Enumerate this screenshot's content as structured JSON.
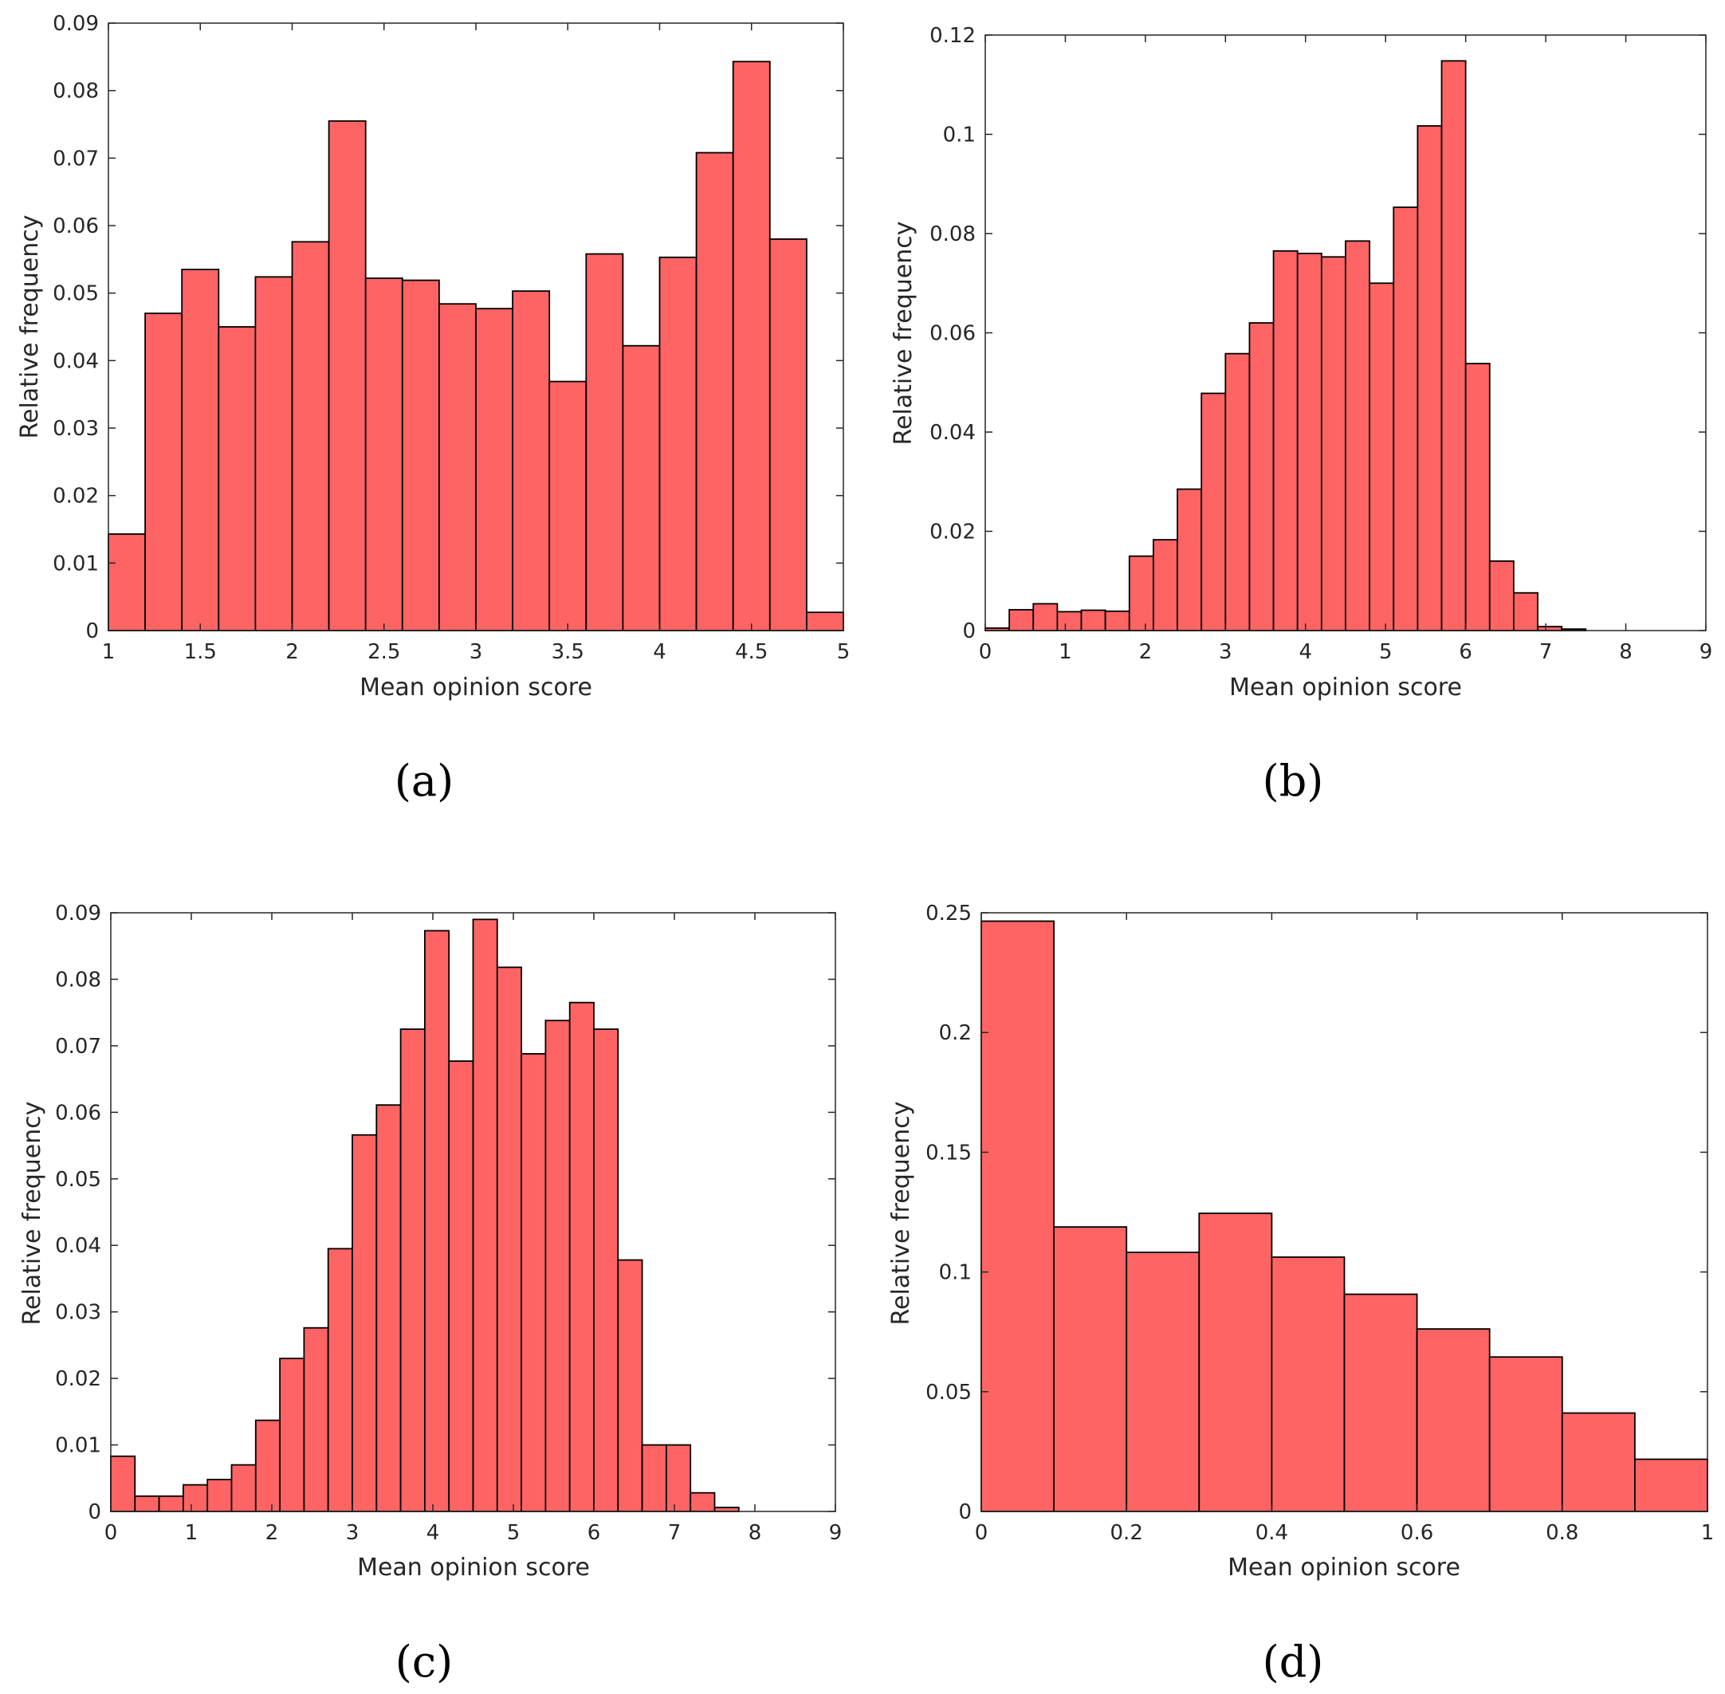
{
  "colors": {
    "bar_fill": "#ff6464",
    "bar_edge": "#000000",
    "axis": "#262626"
  },
  "chart_data": [
    {
      "type": "bar",
      "panel_label": "(a)",
      "title": "",
      "xlabel": "Mean opinion score",
      "ylabel": "Relative frequency",
      "xlim": [
        1,
        5
      ],
      "ylim": [
        0,
        0.09
      ],
      "xticks": [
        1,
        1.5,
        2,
        2.5,
        3,
        3.5,
        4,
        4.5,
        5
      ],
      "xtick_labels": [
        "1",
        "1.5",
        "2",
        "2.5",
        "3",
        "3.5",
        "4",
        "4.5",
        "5"
      ],
      "yticks": [
        0,
        0.01,
        0.02,
        0.03,
        0.04,
        0.05,
        0.06,
        0.07,
        0.08,
        0.09
      ],
      "ytick_labels": [
        "0",
        "0.01",
        "0.02",
        "0.03",
        "0.04",
        "0.05",
        "0.06",
        "0.07",
        "0.08",
        "0.09"
      ],
      "bin_edges": [
        1,
        1.2,
        1.4,
        1.6,
        1.8,
        2.0,
        2.2,
        2.4,
        2.6,
        2.8,
        3.0,
        3.2,
        3.4,
        3.6,
        3.8,
        4.0,
        4.2,
        4.4,
        4.6,
        4.8,
        5.0
      ],
      "values": [
        0.0143,
        0.047,
        0.0535,
        0.045,
        0.0524,
        0.0576,
        0.0755,
        0.0522,
        0.0519,
        0.0484,
        0.0477,
        0.0503,
        0.0369,
        0.0558,
        0.0422,
        0.0553,
        0.0708,
        0.0843,
        0.058,
        0.0027
      ]
    },
    {
      "type": "bar",
      "panel_label": "(b)",
      "title": "",
      "xlabel": "Mean opinion score",
      "ylabel": "Relative frequency",
      "xlim": [
        0,
        9
      ],
      "ylim": [
        0,
        0.12
      ],
      "xticks": [
        0,
        1,
        2,
        3,
        4,
        5,
        6,
        7,
        8,
        9
      ],
      "xtick_labels": [
        "0",
        "1",
        "2",
        "3",
        "4",
        "5",
        "6",
        "7",
        "8",
        "9"
      ],
      "yticks": [
        0,
        0.02,
        0.04,
        0.06,
        0.08,
        0.1,
        0.12
      ],
      "ytick_labels": [
        "0",
        "0.02",
        "0.04",
        "0.06",
        "0.08",
        "0.1",
        "0.12"
      ],
      "bin_edges": [
        0,
        0.3,
        0.6,
        0.9,
        1.2,
        1.5,
        1.8,
        2.1,
        2.4,
        2.7,
        3.0,
        3.3,
        3.6,
        3.9,
        4.2,
        4.5,
        4.8,
        5.1,
        5.4,
        5.7,
        6.0,
        6.3,
        6.6,
        6.9,
        7.2,
        7.5
      ],
      "values": [
        0.0005,
        0.0042,
        0.0054,
        0.0038,
        0.0041,
        0.0039,
        0.015,
        0.0183,
        0.0285,
        0.0478,
        0.0558,
        0.062,
        0.0765,
        0.076,
        0.0753,
        0.0785,
        0.07,
        0.0853,
        0.1017,
        0.1148,
        0.0538,
        0.014,
        0.0076,
        0.0008,
        0.0003
      ]
    },
    {
      "type": "bar",
      "panel_label": "(c)",
      "title": "",
      "xlabel": "Mean opinion score",
      "ylabel": "Relative frequency",
      "xlim": [
        0,
        9
      ],
      "ylim": [
        0,
        0.09
      ],
      "xticks": [
        0,
        1,
        2,
        3,
        4,
        5,
        6,
        7,
        8,
        9
      ],
      "xtick_labels": [
        "0",
        "1",
        "2",
        "3",
        "4",
        "5",
        "6",
        "7",
        "8",
        "9"
      ],
      "yticks": [
        0,
        0.01,
        0.02,
        0.03,
        0.04,
        0.05,
        0.06,
        0.07,
        0.08,
        0.09
      ],
      "ytick_labels": [
        "0",
        "0.01",
        "0.02",
        "0.03",
        "0.04",
        "0.05",
        "0.06",
        "0.07",
        "0.08",
        "0.09"
      ],
      "bin_edges": [
        0,
        0.3,
        0.6,
        0.9,
        1.2,
        1.5,
        1.8,
        2.1,
        2.4,
        2.7,
        3.0,
        3.3,
        3.6,
        3.9,
        4.2,
        4.5,
        4.8,
        5.1,
        5.4,
        5.7,
        6.0,
        6.3,
        6.6,
        6.9,
        7.2,
        7.5,
        7.8
      ],
      "values": [
        0.0083,
        0.0023,
        0.0023,
        0.004,
        0.0048,
        0.007,
        0.0137,
        0.023,
        0.0276,
        0.0395,
        0.0566,
        0.0611,
        0.0725,
        0.0873,
        0.0677,
        0.089,
        0.0818,
        0.0688,
        0.0738,
        0.0765,
        0.0725,
        0.0378,
        0.01,
        0.01,
        0.0028,
        0.0006
      ]
    },
    {
      "type": "bar",
      "panel_label": "(d)",
      "title": "",
      "xlabel": "Mean opinion score",
      "ylabel": "Relative frequency",
      "xlim": [
        0,
        1
      ],
      "ylim": [
        0,
        0.25
      ],
      "xticks": [
        0,
        0.2,
        0.4,
        0.6,
        0.8,
        1
      ],
      "xtick_labels": [
        "0",
        "0.2",
        "0.4",
        "0.6",
        "0.8",
        "1"
      ],
      "yticks": [
        0,
        0.05,
        0.1,
        0.15,
        0.2,
        0.25
      ],
      "ytick_labels": [
        "0",
        "0.05",
        "0.1",
        "0.15",
        "0.2",
        "0.25"
      ],
      "bin_edges": [
        0,
        0.1,
        0.2,
        0.3,
        0.4,
        0.5,
        0.6,
        0.7,
        0.8,
        0.9,
        1.0
      ],
      "values": [
        0.2465,
        0.1188,
        0.1082,
        0.1245,
        0.1062,
        0.0907,
        0.0762,
        0.0645,
        0.0411,
        0.0218
      ]
    }
  ]
}
